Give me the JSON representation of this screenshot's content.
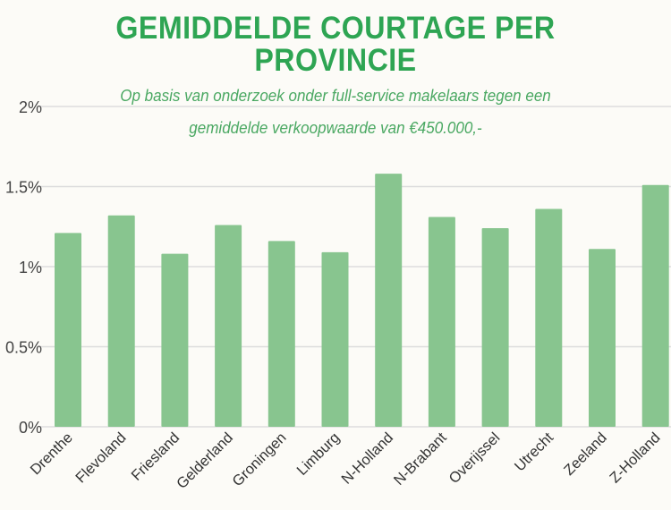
{
  "chart_data": {
    "type": "bar",
    "title": "GEMIDDELDE COURTAGE PER PROVINCIE",
    "title_lines": [
      "GEMIDDELDE COURTAGE PER",
      "PROVINCIE"
    ],
    "subtitle_lines": [
      "Op basis van onderzoek onder full-service makelaars tegen een",
      "gemiddelde verkoopwaarde van €450.000,-"
    ],
    "categories": [
      "Drenthe",
      "Flevoland",
      "Friesland",
      "Gelderland",
      "Groningen",
      "Limburg",
      "N-Holland",
      "N-Brabant",
      "Overijssel",
      "Utrecht",
      "Zeeland",
      "Z-Holland"
    ],
    "values": [
      1.21,
      1.32,
      1.08,
      1.26,
      1.16,
      1.09,
      1.58,
      1.31,
      1.24,
      1.36,
      1.11,
      1.51
    ],
    "unit": "%",
    "ylim": [
      0,
      2
    ],
    "yticks": [
      0,
      0.5,
      1,
      1.5,
      2
    ],
    "ytick_labels": [
      "0%",
      "0.5%",
      "1%",
      "1.5%",
      "2%"
    ],
    "xlabel": "",
    "ylabel": "",
    "grid": true,
    "colors": {
      "bar": "#88c58f",
      "title": "#2ea553",
      "subtitle": "#4aa862",
      "grid": "#dddddd",
      "background": "#fcfbf7"
    }
  }
}
